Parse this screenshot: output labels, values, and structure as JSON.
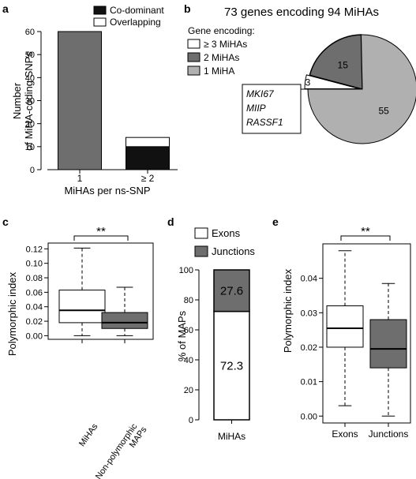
{
  "panel_labels": {
    "a": "a",
    "b": "b",
    "c": "c",
    "d": "d",
    "e": "e"
  },
  "colors": {
    "dark_gray": "#6e6e6e",
    "light_gray": "#b0b0b0",
    "black": "#111111",
    "white": "#ffffff"
  },
  "chart_data": [
    {
      "id": "a",
      "type": "bar",
      "categories": [
        "1",
        "≥ 2"
      ],
      "series": [
        {
          "name": "Co-dominant",
          "values": [
            60,
            10
          ]
        },
        {
          "name": "Overlapping",
          "values": [
            0,
            4
          ]
        }
      ],
      "ylabel_line1": "Number",
      "ylabel_line2": "of MiHA-coding SNPs",
      "xlabel": "MiHAs per ns-SNP",
      "ylim": [
        0,
        60
      ],
      "yticks": [
        "0",
        "10",
        "20",
        "30",
        "40",
        "50",
        "60"
      ],
      "legend": [
        "Co-dominant",
        "Overlapping"
      ],
      "legend_position": "top-right"
    },
    {
      "id": "b",
      "type": "pie",
      "title": "73 genes encoding 94 MiHAs",
      "legend_title": "Gene encoding:",
      "slices": [
        {
          "label": "≥ 3 MiHAs",
          "value": 3,
          "value_text": "3"
        },
        {
          "label": "2 MiHAs",
          "value": 15,
          "value_text": "15"
        },
        {
          "label": "1 MiHA",
          "value": 55,
          "value_text": "55"
        }
      ],
      "callout_genes": [
        "MKI67",
        "MIIP",
        "RASSF1"
      ]
    },
    {
      "id": "c",
      "type": "box",
      "categories": [
        "MiHAs",
        "Non-polymorphic MAPs"
      ],
      "category_line1": [
        "MiHAs",
        "Non-polymorphic"
      ],
      "category_line2": [
        "",
        "MAPs"
      ],
      "ylabel": "Polymorphic index",
      "ylim": [
        -0.005,
        0.128
      ],
      "yticks": [
        "0.00",
        "0.02",
        "0.04",
        "0.06",
        "0.08",
        "0.10",
        "0.12"
      ],
      "boxes": [
        {
          "min": 0.0,
          "q1": 0.018,
          "median": 0.035,
          "q3": 0.063,
          "max": 0.121
        },
        {
          "min": 0.0,
          "q1": 0.01,
          "median": 0.018,
          "q3": 0.032,
          "max": 0.067
        }
      ],
      "significance": "**"
    },
    {
      "id": "d",
      "type": "bar",
      "stacked": true,
      "categories": [
        "MiHAs"
      ],
      "series": [
        {
          "name": "Exons",
          "values": [
            72.3
          ],
          "value_text": "72.3"
        },
        {
          "name": "Junctions",
          "values": [
            27.6
          ],
          "value_text": "27.6"
        }
      ],
      "ylabel": "% of MAPs",
      "ylim": [
        0,
        100
      ],
      "yticks": [
        "0",
        "20",
        "40",
        "60",
        "80",
        "100"
      ],
      "legend": [
        "Exons",
        "Junctions"
      ],
      "legend_position": "top"
    },
    {
      "id": "e",
      "type": "box",
      "categories": [
        "Exons",
        "Junctions"
      ],
      "ylabel": "Polymorphic index",
      "ylim": [
        -0.002,
        0.05
      ],
      "yticks": [
        "0.00",
        "0.01",
        "0.02",
        "0.03",
        "0.04"
      ],
      "boxes": [
        {
          "min": 0.003,
          "q1": 0.02,
          "median": 0.0255,
          "q3": 0.032,
          "max": 0.048
        },
        {
          "min": 0.0,
          "q1": 0.014,
          "median": 0.0195,
          "q3": 0.028,
          "max": 0.0385
        }
      ],
      "significance": "**"
    }
  ]
}
